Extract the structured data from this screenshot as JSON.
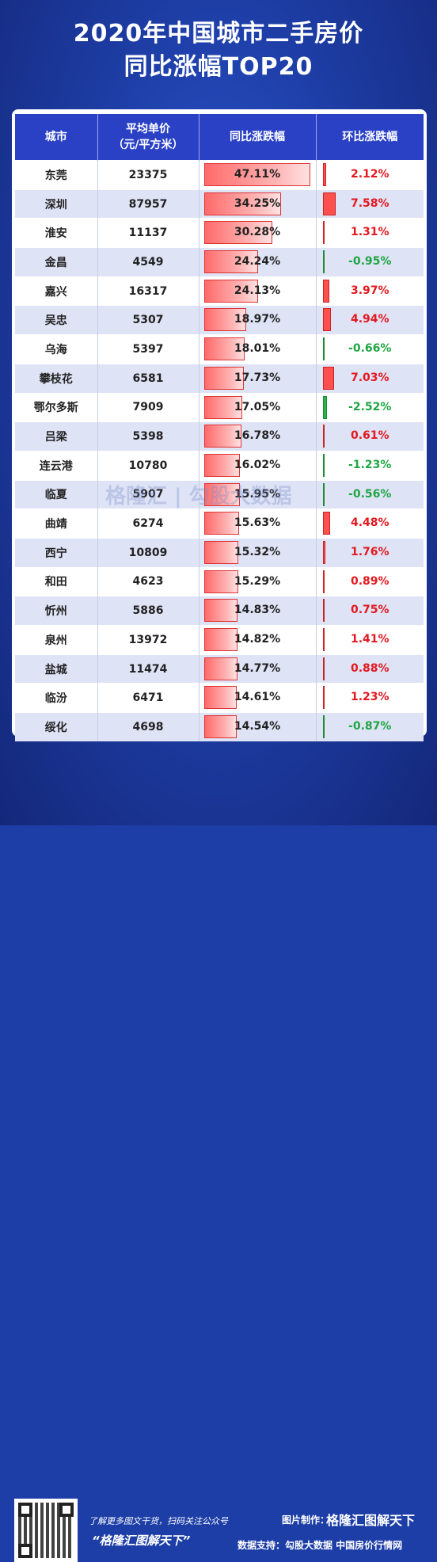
{
  "title_line1": "2020年中国城市二手房价",
  "title_line2": "同比涨幅TOP20",
  "headers": {
    "city": "城市",
    "price_line1": "平均单价",
    "price_line2": "（元/平方米）",
    "yoy": "同比涨跌幅",
    "mom": "环比涨跌幅"
  },
  "colors": {
    "positive": "#e3181f",
    "negative": "#1fa542",
    "header": "#2a41c6"
  },
  "chart_data": {
    "type": "table",
    "columns": [
      "城市",
      "平均单价（元/平方米）",
      "同比涨跌幅",
      "环比涨跌幅"
    ],
    "rows": [
      {
        "city": "东莞",
        "price": "23375",
        "yoy": 47.11,
        "yoy_label": "47.11%",
        "mom": 2.12,
        "mom_label": "2.12%"
      },
      {
        "city": "深圳",
        "price": "87957",
        "yoy": 34.25,
        "yoy_label": "34.25%",
        "mom": 7.58,
        "mom_label": "7.58%"
      },
      {
        "city": "淮安",
        "price": "11137",
        "yoy": 30.28,
        "yoy_label": "30.28%",
        "mom": 1.31,
        "mom_label": "1.31%"
      },
      {
        "city": "金昌",
        "price": "4549",
        "yoy": 24.24,
        "yoy_label": "24.24%",
        "mom": -0.95,
        "mom_label": "-0.95%"
      },
      {
        "city": "嘉兴",
        "price": "16317",
        "yoy": 24.13,
        "yoy_label": "24.13%",
        "mom": 3.97,
        "mom_label": "3.97%"
      },
      {
        "city": "吴忠",
        "price": "5307",
        "yoy": 18.97,
        "yoy_label": "18.97%",
        "mom": 4.94,
        "mom_label": "4.94%"
      },
      {
        "city": "乌海",
        "price": "5397",
        "yoy": 18.01,
        "yoy_label": "18.01%",
        "mom": -0.66,
        "mom_label": "-0.66%"
      },
      {
        "city": "攀枝花",
        "price": "6581",
        "yoy": 17.73,
        "yoy_label": "17.73%",
        "mom": 7.03,
        "mom_label": "7.03%"
      },
      {
        "city": "鄂尔多斯",
        "price": "7909",
        "yoy": 17.05,
        "yoy_label": "17.05%",
        "mom": -2.52,
        "mom_label": "-2.52%"
      },
      {
        "city": "吕梁",
        "price": "5398",
        "yoy": 16.78,
        "yoy_label": "16.78%",
        "mom": 0.61,
        "mom_label": "0.61%"
      },
      {
        "city": "连云港",
        "price": "10780",
        "yoy": 16.02,
        "yoy_label": "16.02%",
        "mom": -1.23,
        "mom_label": "-1.23%"
      },
      {
        "city": "临夏",
        "price": "5907",
        "yoy": 15.95,
        "yoy_label": "15.95%",
        "mom": -0.56,
        "mom_label": "-0.56%"
      },
      {
        "city": "曲靖",
        "price": "6274",
        "yoy": 15.63,
        "yoy_label": "15.63%",
        "mom": 4.48,
        "mom_label": "4.48%"
      },
      {
        "city": "西宁",
        "price": "10809",
        "yoy": 15.32,
        "yoy_label": "15.32%",
        "mom": 1.76,
        "mom_label": "1.76%"
      },
      {
        "city": "和田",
        "price": "4623",
        "yoy": 15.29,
        "yoy_label": "15.29%",
        "mom": 0.89,
        "mom_label": "0.89%"
      },
      {
        "city": "忻州",
        "price": "5886",
        "yoy": 14.83,
        "yoy_label": "14.83%",
        "mom": 0.75,
        "mom_label": "0.75%"
      },
      {
        "city": "泉州",
        "price": "13972",
        "yoy": 14.82,
        "yoy_label": "14.82%",
        "mom": 1.41,
        "mom_label": "1.41%"
      },
      {
        "city": "盐城",
        "price": "11474",
        "yoy": 14.77,
        "yoy_label": "14.77%",
        "mom": 0.88,
        "mom_label": "0.88%"
      },
      {
        "city": "临汾",
        "price": "6471",
        "yoy": 14.61,
        "yoy_label": "14.61%",
        "mom": 1.23,
        "mom_label": "1.23%"
      },
      {
        "city": "绥化",
        "price": "4698",
        "yoy": 14.54,
        "yoy_label": "14.54%",
        "mom": -0.87,
        "mom_label": "-0.87%"
      }
    ]
  },
  "watermark": "格隆汇 | 勾股大数据",
  "footer": {
    "qr_icon": "qr-code-icon",
    "promo_line": "了解更多图文干货，扫码关注公众号",
    "account": "“格隆汇图解天下”",
    "maker_label": "图片制作：",
    "maker_brand": "格隆汇图解天下",
    "support": "数据支持：勾股大数据  中国房价行情网"
  }
}
